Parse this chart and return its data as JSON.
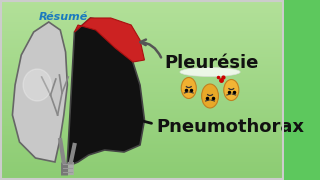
{
  "bg_color": "#5dc85d",
  "title_pneumothorax": "Pneumothorax",
  "title_pleurisie": "Pleurésie",
  "label_resume": "Résumé",
  "text_color_main": "#111111",
  "text_color_resume": "#1a7abf",
  "lung_fill_left": "#c8c8c8",
  "lung_fill_right_black": "#111111",
  "lung_fill_right_red": "#cc2222",
  "border_color": "#555555",
  "font_size_main": 13,
  "font_size_resume": 8
}
